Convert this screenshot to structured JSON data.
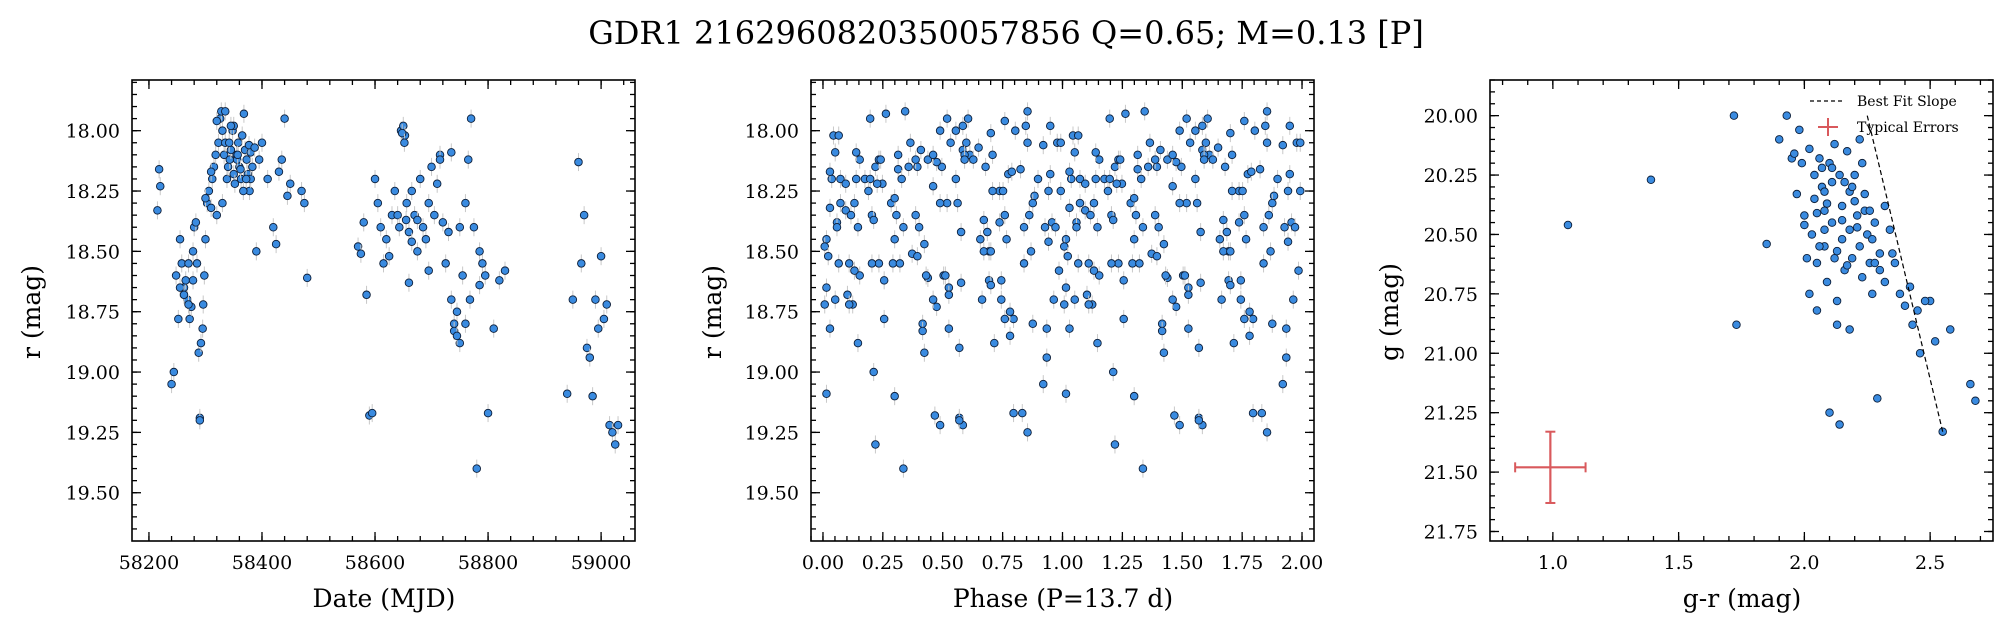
{
  "title": "GDR1 2162960820350057856  Q=0.65; M=0.13 [P]",
  "colors": {
    "point": "#3a8be0",
    "edge": "#0d1f3a",
    "errorbar": "#c8c8c8",
    "typical_error": "#d9595c"
  },
  "chart_data": [
    {
      "type": "scatter",
      "xlabel": "Date (MJD)",
      "ylabel": "r (mag)",
      "xlim": [
        58170,
        59060
      ],
      "ylim": [
        19.7,
        17.79
      ],
      "y_inverted": true,
      "xticks": [
        58200,
        58400,
        58600,
        58800,
        59000
      ],
      "yticks": [
        18.0,
        18.25,
        18.5,
        18.75,
        19.0,
        19.25,
        19.5
      ],
      "x": [
        58215,
        58218,
        58220,
        58240,
        58244,
        58248,
        58252,
        58255,
        58258,
        58262,
        58265,
        58268,
        58270,
        58272,
        58275,
        58278,
        58280,
        58283,
        58285,
        58288,
        58290,
        58292,
        58295,
        58298,
        58300,
        58303,
        58306,
        58310,
        58312,
        58315,
        58318,
        58320,
        58323,
        58326,
        58328,
        58330,
        58333,
        58335,
        58338,
        58340,
        58343,
        58345,
        58348,
        58350,
        58352,
        58355,
        58358,
        58360,
        58363,
        58365,
        58368,
        58370,
        58373,
        58375,
        58378,
        58380,
        58383,
        58390,
        58395,
        58400,
        58410,
        58420,
        58425,
        58430,
        58435,
        58440,
        58445,
        58450,
        58470,
        58475,
        58480,
        58570,
        58575,
        58580,
        58585,
        58590,
        58595,
        58600,
        58605,
        58610,
        58615,
        58620,
        58625,
        58630,
        58635,
        58640,
        58643,
        58646,
        58650,
        58653,
        58656,
        58660,
        58665,
        58670,
        58675,
        58680,
        58685,
        58690,
        58695,
        58700,
        58705,
        58710,
        58715,
        58720,
        58725,
        58730,
        58735,
        58740,
        58745,
        58750,
        58755,
        58760,
        58765,
        58770,
        58775,
        58780,
        58785,
        58790,
        58795,
        58800,
        58810,
        58820,
        58830,
        58940,
        58950,
        58960,
        58965,
        58970,
        58975,
        58980,
        58985,
        58990,
        58995,
        59000,
        59005,
        59010,
        59015,
        59020,
        59025,
        59030,
        58255,
        58262,
        58270,
        58278,
        58290,
        58296,
        58335,
        58342,
        58350,
        58356,
        58362,
        58372,
        58380,
        58648,
        58652,
        58660,
        58740,
        58745,
        58760,
        58768,
        58300,
        58310,
        58320,
        58330,
        58345,
        58357,
        58367,
        58377,
        58387,
        58655,
        58665,
        58675,
        58695,
        58715,
        58735,
        58750,
        58785
      ],
      "y": [
        18.33,
        18.16,
        18.23,
        19.05,
        19.0,
        18.6,
        18.78,
        18.45,
        18.55,
        18.65,
        18.62,
        18.7,
        18.55,
        18.78,
        18.73,
        18.5,
        18.4,
        18.38,
        18.55,
        18.92,
        19.19,
        18.88,
        18.82,
        18.6,
        18.45,
        18.3,
        18.25,
        18.32,
        18.2,
        18.15,
        18.1,
        18.35,
        18.05,
        17.95,
        17.92,
        18.0,
        18.1,
        18.05,
        18.2,
        18.15,
        18.12,
        18.08,
        18.0,
        18.18,
        18.22,
        18.1,
        18.05,
        18.15,
        18.2,
        18.02,
        17.93,
        18.08,
        18.12,
        18.18,
        18.25,
        18.2,
        18.15,
        18.5,
        18.12,
        18.05,
        18.2,
        18.4,
        18.47,
        18.17,
        18.12,
        17.95,
        18.27,
        18.22,
        18.25,
        18.3,
        18.61,
        18.48,
        18.51,
        18.38,
        18.68,
        19.18,
        19.17,
        18.2,
        18.3,
        18.4,
        18.55,
        18.45,
        18.52,
        18.35,
        18.25,
        18.35,
        18.4,
        18.0,
        17.98,
        18.02,
        18.3,
        18.42,
        18.25,
        18.35,
        18.5,
        18.2,
        18.4,
        18.45,
        18.3,
        18.15,
        18.35,
        18.22,
        18.1,
        18.38,
        18.55,
        18.42,
        18.7,
        18.8,
        18.75,
        18.88,
        18.6,
        18.3,
        18.12,
        17.95,
        18.4,
        19.4,
        18.5,
        18.55,
        18.6,
        19.17,
        18.82,
        18.62,
        18.58,
        19.09,
        18.7,
        18.13,
        18.55,
        18.35,
        18.9,
        18.94,
        19.1,
        18.7,
        18.82,
        18.52,
        18.78,
        18.72,
        19.22,
        19.25,
        19.3,
        19.22,
        18.65,
        18.68,
        18.72,
        18.62,
        19.2,
        18.72,
        17.92,
        18.05,
        17.98,
        18.12,
        18.16,
        18.2,
        18.09,
        18.01,
        18.05,
        18.63,
        18.83,
        18.85,
        18.8,
        18.7,
        18.28,
        18.17,
        17.96,
        18.3,
        17.98,
        18.1,
        18.25,
        18.06,
        18.07,
        18.37,
        18.46,
        18.37,
        18.58,
        18.12,
        18.09,
        18.4,
        18.64
      ]
    },
    {
      "type": "scatter",
      "xlabel": "Phase (P=13.7 d)",
      "ylabel": "r (mag)",
      "xlim": [
        -0.05,
        2.05
      ],
      "ylim": [
        19.7,
        17.79
      ],
      "y_inverted": true,
      "xticks": [
        0.0,
        0.25,
        0.5,
        0.75,
        1.0,
        1.25,
        1.5,
        1.75,
        2.0
      ],
      "yticks": [
        18.0,
        18.25,
        18.5,
        18.75,
        19.0,
        19.25,
        19.5
      ],
      "phase_fold_of_panel": 1
    },
    {
      "type": "scatter",
      "xlabel": "g-r (mag)",
      "ylabel": "g (mag)",
      "xlim": [
        0.75,
        2.75
      ],
      "ylim": [
        21.79,
        19.85
      ],
      "y_inverted": true,
      "xticks": [
        1.0,
        1.5,
        2.0,
        2.5
      ],
      "yticks": [
        20.0,
        20.25,
        20.5,
        20.75,
        21.0,
        21.25,
        21.5,
        21.75
      ],
      "x": [
        1.06,
        1.39,
        1.72,
        1.73,
        1.85,
        1.9,
        1.93,
        1.95,
        1.97,
        1.99,
        2.0,
        2.01,
        2.02,
        2.03,
        2.04,
        2.05,
        2.05,
        2.06,
        2.07,
        2.08,
        2.08,
        2.09,
        2.1,
        2.11,
        2.11,
        2.12,
        2.13,
        2.13,
        2.14,
        2.15,
        2.15,
        2.16,
        2.17,
        2.18,
        2.18,
        2.19,
        2.2,
        2.21,
        2.22,
        2.23,
        2.24,
        2.25,
        2.26,
        2.27,
        2.28,
        2.3,
        2.32,
        2.34,
        2.36,
        2.38,
        2.4,
        2.43,
        2.46,
        2.5,
        2.55,
        2.58,
        2.66,
        2.68,
        1.98,
        2.02,
        2.07,
        2.12,
        2.16,
        2.2,
        2.24,
        2.1,
        2.14,
        2.18,
        2.22,
        2.08,
        2.04,
        2.0,
        2.26,
        2.28,
        2.3,
        2.32,
        2.35,
        2.42,
        2.45,
        2.48,
        2.52,
        2.29,
        2.11,
        2.08,
        1.96,
        2.06,
        2.15,
        2.19,
        2.23,
        2.27,
        2.05,
        2.09,
        2.13,
        2.17,
        2.21
      ],
      "y": [
        20.46,
        20.27,
        20.0,
        20.88,
        20.54,
        20.1,
        20.0,
        20.18,
        20.33,
        20.2,
        20.42,
        20.6,
        20.75,
        20.5,
        20.35,
        20.62,
        20.82,
        20.18,
        20.3,
        20.4,
        20.55,
        20.7,
        20.2,
        20.28,
        20.45,
        20.6,
        20.78,
        20.88,
        20.25,
        20.38,
        20.52,
        20.65,
        20.15,
        20.32,
        20.48,
        20.6,
        20.25,
        20.42,
        20.55,
        20.68,
        20.4,
        20.5,
        20.62,
        20.75,
        20.45,
        20.58,
        20.7,
        20.48,
        20.62,
        20.75,
        20.8,
        20.88,
        21.0,
        20.78,
        21.33,
        20.9,
        21.13,
        21.2,
        20.06,
        20.14,
        20.22,
        20.12,
        20.28,
        20.36,
        20.33,
        21.25,
        21.3,
        20.9,
        20.1,
        20.32,
        20.25,
        20.46,
        20.4,
        20.62,
        20.65,
        20.38,
        20.58,
        20.72,
        20.82,
        20.78,
        20.95,
        21.19,
        20.22,
        20.48,
        20.16,
        20.55,
        20.44,
        20.3,
        20.2,
        20.52,
        20.41,
        20.37,
        20.57,
        20.63,
        20.47
      ],
      "best_fit_slope": {
        "x": [
          2.25,
          2.55
        ],
        "y": [
          20.0,
          21.33
        ]
      },
      "typical_error": {
        "x": 0.99,
        "y": 21.48,
        "xerr": 0.14,
        "yerr": 0.15
      },
      "legend": {
        "placement": "top-right",
        "entries": [
          "Best Fit Slope",
          "Typical Errors"
        ]
      }
    }
  ]
}
